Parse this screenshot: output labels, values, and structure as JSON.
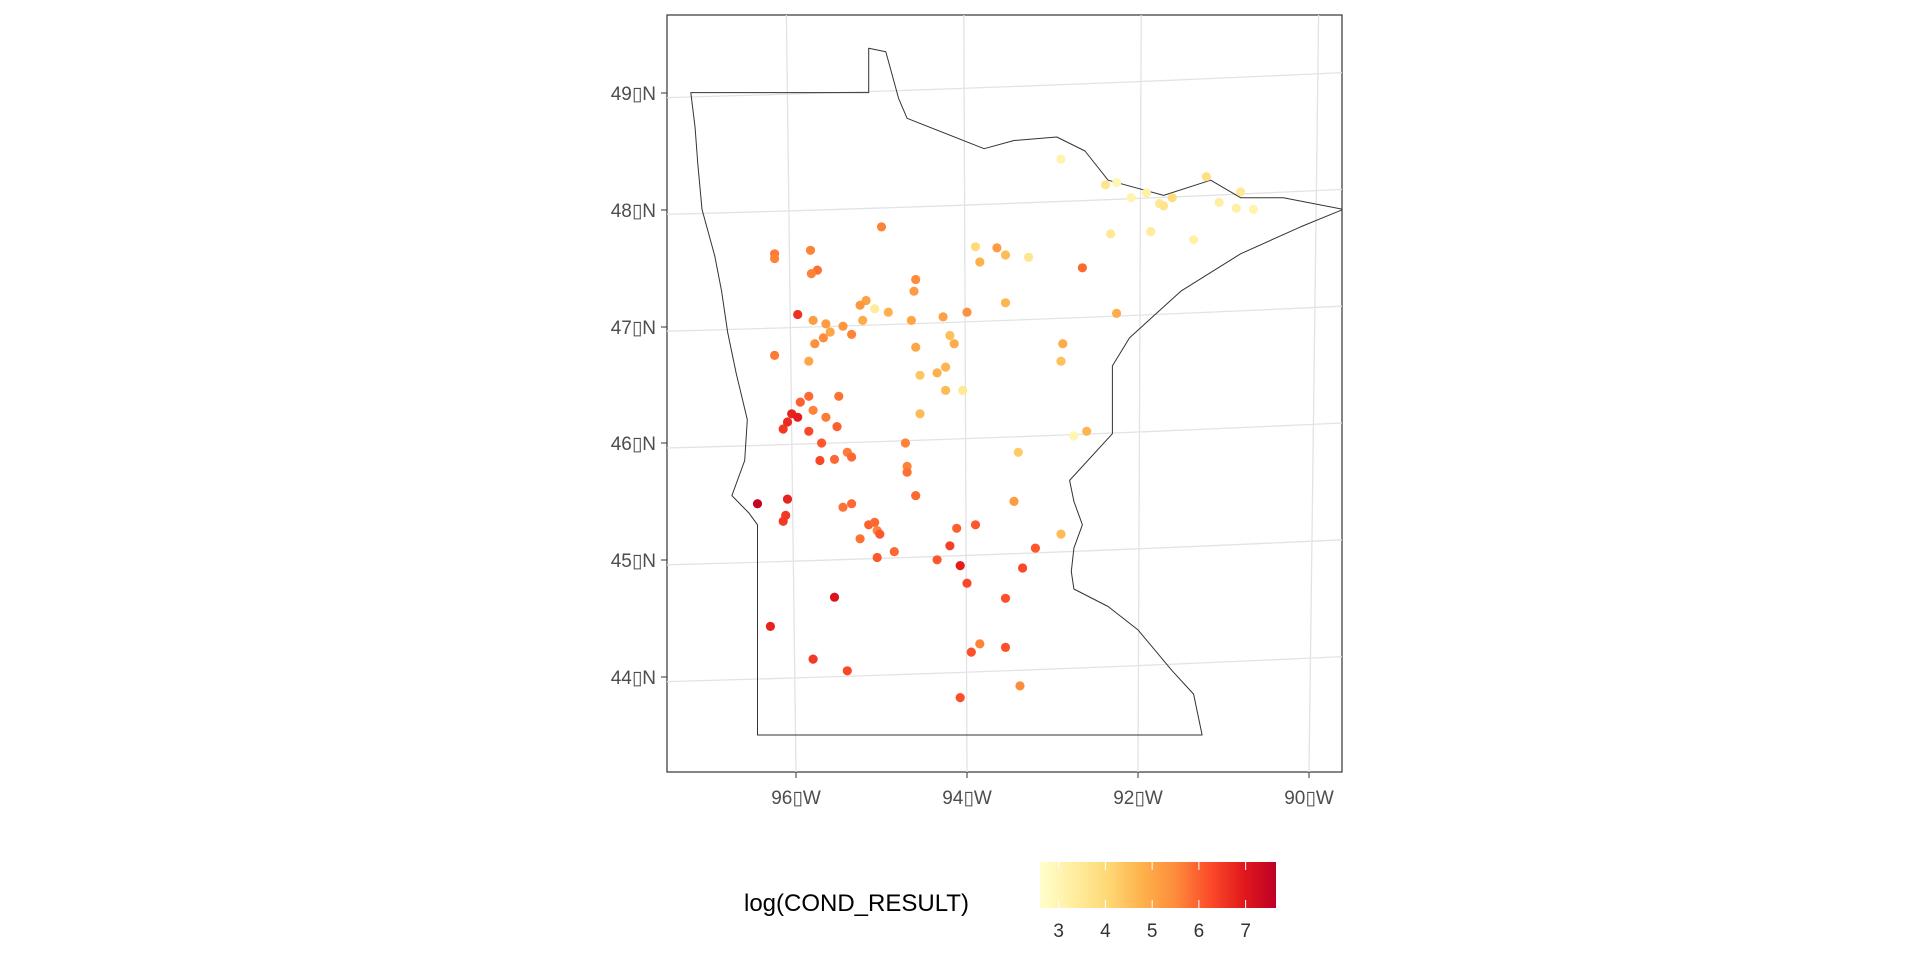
{
  "map": {
    "x_axis": {
      "ticks": [
        {
          "value": -96,
          "label": "96▯W"
        },
        {
          "value": -94,
          "label": "94▯W"
        },
        {
          "value": -92,
          "label": "92▯W"
        },
        {
          "value": -90,
          "label": "90▯W"
        }
      ]
    },
    "y_axis": {
      "ticks": [
        {
          "value": 49,
          "label": "49▯N"
        },
        {
          "value": 48,
          "label": "48▯N"
        },
        {
          "value": 47,
          "label": "47▯N"
        },
        {
          "value": 46,
          "label": "46▯N"
        },
        {
          "value": 45,
          "label": "45▯N"
        },
        {
          "value": 44,
          "label": "44▯N"
        }
      ]
    },
    "region_outline": [
      [
        -97.23,
        49.0
      ],
      [
        -95.15,
        49.0
      ],
      [
        -95.15,
        49.38
      ],
      [
        -94.95,
        49.35
      ],
      [
        -94.8,
        48.95
      ],
      [
        -94.7,
        48.78
      ],
      [
        -93.8,
        48.52
      ],
      [
        -93.45,
        48.59
      ],
      [
        -92.95,
        48.62
      ],
      [
        -92.62,
        48.5
      ],
      [
        -92.35,
        48.25
      ],
      [
        -91.7,
        48.12
      ],
      [
        -91.15,
        48.25
      ],
      [
        -90.8,
        48.1
      ],
      [
        -90.3,
        48.1
      ],
      [
        -89.6,
        48.0
      ],
      [
        -90.1,
        47.85
      ],
      [
        -90.8,
        47.62
      ],
      [
        -91.5,
        47.3
      ],
      [
        -92.1,
        46.9
      ],
      [
        -92.3,
        46.66
      ],
      [
        -92.3,
        46.08
      ],
      [
        -92.8,
        45.68
      ],
      [
        -92.75,
        45.5
      ],
      [
        -92.65,
        45.3
      ],
      [
        -92.75,
        45.1
      ],
      [
        -92.78,
        44.9
      ],
      [
        -92.75,
        44.75
      ],
      [
        -92.35,
        44.6
      ],
      [
        -92.0,
        44.4
      ],
      [
        -91.6,
        44.05
      ],
      [
        -91.35,
        43.85
      ],
      [
        -91.25,
        43.5
      ],
      [
        -96.45,
        43.5
      ],
      [
        -96.45,
        45.3
      ],
      [
        -96.55,
        45.4
      ],
      [
        -96.75,
        45.55
      ],
      [
        -96.6,
        45.85
      ],
      [
        -96.57,
        46.2
      ],
      [
        -96.7,
        46.6
      ],
      [
        -96.8,
        46.95
      ],
      [
        -96.87,
        47.3
      ],
      [
        -96.95,
        47.6
      ],
      [
        -97.1,
        48.0
      ],
      [
        -97.15,
        48.4
      ],
      [
        -97.18,
        48.7
      ],
      [
        -97.23,
        49.0
      ]
    ],
    "sites": [
      [
        -92.9,
        48.43,
        3.1
      ],
      [
        -92.38,
        48.21,
        3.6
      ],
      [
        -92.25,
        48.23,
        3.0
      ],
      [
        -92.08,
        48.1,
        3.1
      ],
      [
        -91.9,
        48.14,
        3.2
      ],
      [
        -91.75,
        48.05,
        3.5
      ],
      [
        -91.7,
        48.03,
        3.7
      ],
      [
        -91.6,
        48.1,
        3.9
      ],
      [
        -91.2,
        48.28,
        3.8
      ],
      [
        -91.05,
        48.06,
        3.3
      ],
      [
        -90.8,
        48.15,
        3.5
      ],
      [
        -90.85,
        48.01,
        3.2
      ],
      [
        -90.65,
        48.0,
        3.1
      ],
      [
        -92.32,
        47.79,
        3.5
      ],
      [
        -91.85,
        47.81,
        3.4
      ],
      [
        -91.35,
        47.74,
        3.2
      ],
      [
        -93.9,
        47.68,
        4.0
      ],
      [
        -93.65,
        47.67,
        5.2
      ],
      [
        -93.55,
        47.61,
        4.6
      ],
      [
        -93.28,
        47.59,
        3.6
      ],
      [
        -93.85,
        47.55,
        4.8
      ],
      [
        -92.65,
        47.5,
        5.9
      ],
      [
        -92.25,
        47.11,
        4.9
      ],
      [
        -95.0,
        47.85,
        5.6
      ],
      [
        -95.83,
        47.65,
        5.6
      ],
      [
        -96.25,
        47.62,
        5.7
      ],
      [
        -96.25,
        47.58,
        5.6
      ],
      [
        -95.75,
        47.48,
        5.8
      ],
      [
        -95.82,
        47.45,
        5.6
      ],
      [
        -94.6,
        47.4,
        5.5
      ],
      [
        -94.62,
        47.3,
        5.2
      ],
      [
        -95.18,
        47.22,
        5.1
      ],
      [
        -95.25,
        47.18,
        5.3
      ],
      [
        -95.08,
        47.15,
        3.4
      ],
      [
        -94.92,
        47.12,
        4.8
      ],
      [
        -95.98,
        47.1,
        6.6
      ],
      [
        -95.8,
        47.05,
        5.2
      ],
      [
        -95.65,
        47.02,
        5.2
      ],
      [
        -95.22,
        47.05,
        4.9
      ],
      [
        -95.45,
        47.0,
        5.3
      ],
      [
        -95.6,
        46.95,
        5.0
      ],
      [
        -95.35,
        46.93,
        5.6
      ],
      [
        -95.68,
        46.9,
        5.5
      ],
      [
        -95.78,
        46.85,
        5.4
      ],
      [
        -94.65,
        47.05,
        5.0
      ],
      [
        -94.28,
        47.08,
        5.1
      ],
      [
        -94.0,
        47.12,
        5.4
      ],
      [
        -94.2,
        46.92,
        4.5
      ],
      [
        -94.15,
        46.85,
        4.9
      ],
      [
        -94.6,
        46.82,
        5.0
      ],
      [
        -93.55,
        47.2,
        4.7
      ],
      [
        -92.88,
        46.85,
        4.9
      ],
      [
        -92.9,
        46.7,
        4.5
      ],
      [
        -96.25,
        46.75,
        5.7
      ],
      [
        -95.85,
        46.7,
        5.0
      ],
      [
        -94.25,
        46.65,
        4.7
      ],
      [
        -94.35,
        46.6,
        4.8
      ],
      [
        -94.55,
        46.58,
        4.4
      ],
      [
        -94.25,
        46.45,
        4.6
      ],
      [
        -94.05,
        46.45,
        3.5
      ],
      [
        -94.55,
        46.25,
        4.6
      ],
      [
        -95.95,
        46.35,
        6.0
      ],
      [
        -95.85,
        46.4,
        5.9
      ],
      [
        -95.5,
        46.4,
        5.8
      ],
      [
        -95.8,
        46.28,
        5.6
      ],
      [
        -95.65,
        46.22,
        5.7
      ],
      [
        -96.05,
        46.25,
        6.8
      ],
      [
        -95.98,
        46.22,
        6.9
      ],
      [
        -96.1,
        46.18,
        6.7
      ],
      [
        -96.15,
        46.12,
        6.5
      ],
      [
        -95.85,
        46.1,
        6.3
      ],
      [
        -95.52,
        46.14,
        6.0
      ],
      [
        -95.7,
        46.0,
        6.1
      ],
      [
        -95.72,
        45.85,
        6.3
      ],
      [
        -95.55,
        45.86,
        5.9
      ],
      [
        -95.4,
        45.92,
        5.7
      ],
      [
        -95.35,
        45.88,
        5.9
      ],
      [
        -94.72,
        46.0,
        5.6
      ],
      [
        -94.7,
        45.8,
        5.6
      ],
      [
        -94.7,
        45.75,
        5.8
      ],
      [
        -94.6,
        45.55,
        5.9
      ],
      [
        -93.4,
        45.92,
        4.3
      ],
      [
        -92.6,
        46.1,
        4.7
      ],
      [
        -92.75,
        46.06,
        3.0
      ],
      [
        -93.45,
        45.5,
        5.2
      ],
      [
        -92.9,
        45.22,
        4.6
      ],
      [
        -96.45,
        45.48,
        7.5
      ],
      [
        -96.1,
        45.52,
        6.8
      ],
      [
        -96.12,
        45.38,
        6.5
      ],
      [
        -96.15,
        45.33,
        6.5
      ],
      [
        -95.45,
        45.45,
        5.8
      ],
      [
        -95.35,
        45.48,
        5.9
      ],
      [
        -95.15,
        45.3,
        6.0
      ],
      [
        -95.08,
        45.32,
        5.9
      ],
      [
        -95.05,
        45.25,
        5.6
      ],
      [
        -95.02,
        45.22,
        6.1
      ],
      [
        -95.25,
        45.18,
        5.8
      ],
      [
        -95.05,
        45.02,
        6.1
      ],
      [
        -94.85,
        45.07,
        5.9
      ],
      [
        -94.12,
        45.27,
        6.0
      ],
      [
        -93.9,
        45.3,
        6.1
      ],
      [
        -94.2,
        45.12,
        6.4
      ],
      [
        -94.35,
        45.0,
        6.1
      ],
      [
        -94.08,
        44.95,
        6.9
      ],
      [
        -94.0,
        44.8,
        6.3
      ],
      [
        -93.35,
        44.93,
        6.3
      ],
      [
        -93.2,
        45.1,
        6.1
      ],
      [
        -93.55,
        44.67,
        6.2
      ],
      [
        -95.55,
        44.68,
        7.1
      ],
      [
        -96.3,
        44.43,
        6.8
      ],
      [
        -95.8,
        44.15,
        6.5
      ],
      [
        -95.4,
        44.05,
        6.3
      ],
      [
        -93.85,
        44.28,
        5.6
      ],
      [
        -93.95,
        44.21,
        6.2
      ],
      [
        -93.55,
        44.25,
        6.2
      ],
      [
        -94.08,
        43.82,
        6.2
      ],
      [
        -93.38,
        43.92,
        5.5
      ]
    ]
  },
  "legend": {
    "title": "log(COND_RESULT)",
    "min": 2.6,
    "max": 7.65,
    "ticks": [
      {
        "value": 3,
        "label": "3"
      },
      {
        "value": 4,
        "label": "4"
      },
      {
        "value": 5,
        "label": "5"
      },
      {
        "value": 6,
        "label": "6"
      },
      {
        "value": 7,
        "label": "7"
      }
    ],
    "palette": [
      "#ffffcc",
      "#ffeda0",
      "#fed976",
      "#feb24c",
      "#fd8d3c",
      "#fc4e2a",
      "#e31a1c",
      "#bd0026"
    ]
  }
}
